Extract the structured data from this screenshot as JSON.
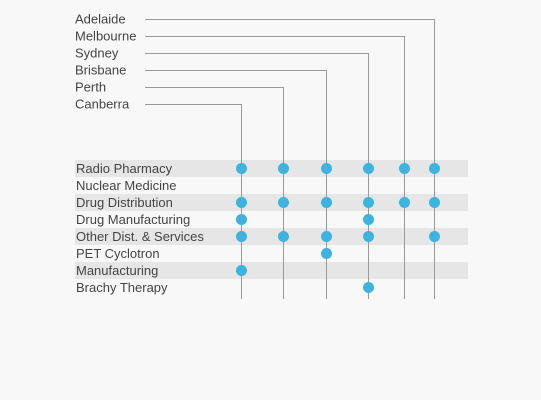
{
  "cities": [
    {
      "name": "Adelaide"
    },
    {
      "name": "Melbourne"
    },
    {
      "name": "Sydney"
    },
    {
      "name": "Brisbane"
    },
    {
      "name": "Perth"
    },
    {
      "name": "Canberra"
    }
  ],
  "services": [
    {
      "name": "Radio Pharmacy",
      "shaded": true,
      "cities": [
        "Canberra",
        "Perth",
        "Brisbane",
        "Sydney",
        "Melbourne",
        "Adelaide"
      ]
    },
    {
      "name": "Nuclear Medicine",
      "shaded": false,
      "cities": []
    },
    {
      "name": "Drug Distribution",
      "shaded": true,
      "cities": [
        "Canberra",
        "Perth",
        "Brisbane",
        "Sydney",
        "Melbourne",
        "Adelaide"
      ]
    },
    {
      "name": "Drug Manufacturing",
      "shaded": false,
      "cities": [
        "Canberra",
        "Sydney"
      ]
    },
    {
      "name": "Other Dist. & Services",
      "shaded": true,
      "cities": [
        "Canberra",
        "Perth",
        "Brisbane",
        "Sydney",
        "Adelaide"
      ]
    },
    {
      "name": "PET Cyclotron",
      "shaded": false,
      "cities": [
        "Brisbane"
      ]
    },
    {
      "name": "Manufacturing",
      "shaded": true,
      "cities": [
        "Canberra"
      ]
    },
    {
      "name": "Brachy Therapy",
      "shaded": false,
      "cities": [
        "Sydney"
      ]
    }
  ],
  "colors": {
    "dot": "#3db3de",
    "band": "#e6e6e6",
    "line": "#999999",
    "text": "#444444",
    "background": "#f8f8f8"
  }
}
